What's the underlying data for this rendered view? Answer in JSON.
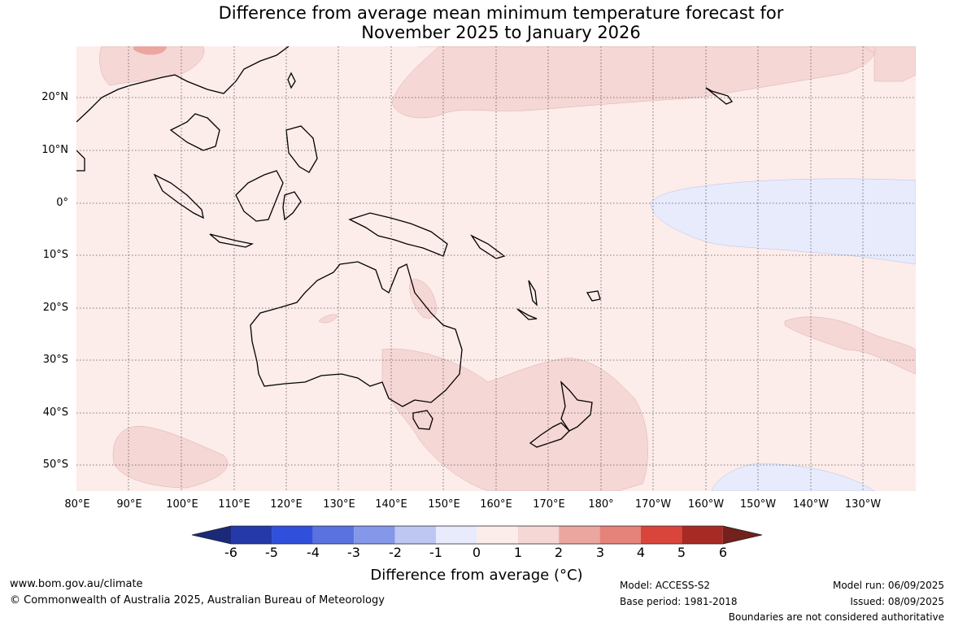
{
  "title_line1": "Difference from average mean minimum temperature forecast for",
  "title_line2": "November 2025 to January 2026",
  "latitude_labels": [
    "20°N",
    "10°N",
    "0°",
    "10°S",
    "20°S",
    "30°S",
    "40°S",
    "50°S"
  ],
  "longitude_labels": [
    "80°E",
    "90°E",
    "100°E",
    "110°E",
    "120°E",
    "130°E",
    "140°E",
    "150°E",
    "160°E",
    "170°E",
    "180°",
    "170°W",
    "160°W",
    "150°W",
    "140°W",
    "130°W"
  ],
  "legend": {
    "title": "Difference from average (°C)",
    "ticks": [
      "-6",
      "-5",
      "-4",
      "-3",
      "-2",
      "-1",
      "0",
      "1",
      "2",
      "3",
      "4",
      "5",
      "6"
    ],
    "colors": {
      "below_min": "#1a2a78",
      "-6_-5": "#2539a8",
      "-5_-4": "#3050db",
      "-4_-3": "#5a72e0",
      "-3_-2": "#8497e8",
      "-2_-1": "#bec7f2",
      "-1_0": "#e7ebfc",
      "0_1": "#fcecea",
      "1_2": "#f5d7d5",
      "2_3": "#eca6a0",
      "3_4": "#e5827a",
      "4_5": "#d9453a",
      "5_6": "#a82a24",
      "above_max": "#72211d"
    }
  },
  "footer": {
    "website": "www.bom.gov.au/climate",
    "copyright": "© Commonwealth of Australia 2025, Australian Bureau of Meteorology",
    "model": "Model: ACCESS-S2",
    "base_period": "Base period: 1981-2018",
    "model_run": "Model run: 06/09/2025",
    "issued": "Issued: 08/09/2025",
    "boundaries_note": "Boundaries are not considered authoritative"
  }
}
